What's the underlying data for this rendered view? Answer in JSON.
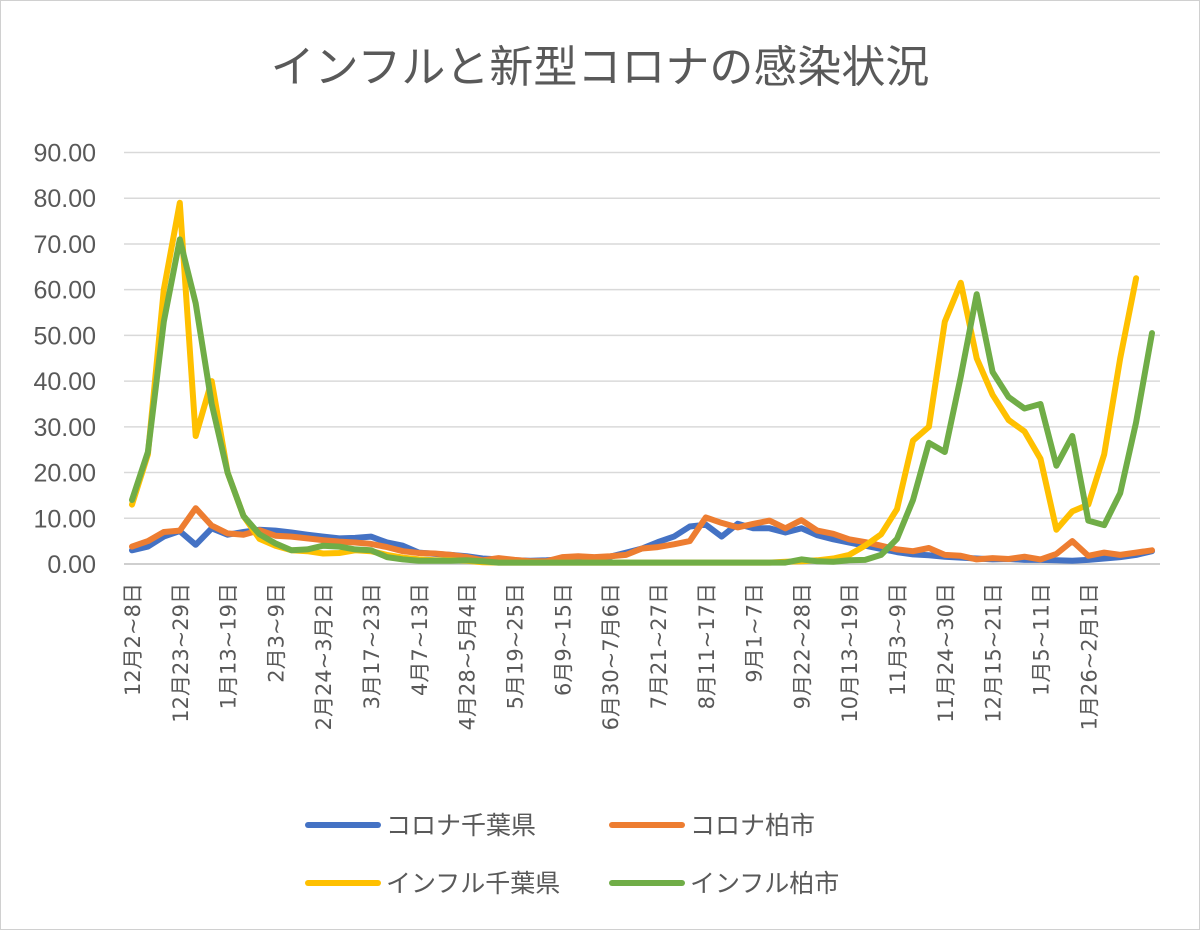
{
  "chart_data": {
    "type": "line",
    "title": "インフルと新型コロナの感染状況",
    "xlabel": "",
    "ylabel": "",
    "ylim": [
      0,
      90
    ],
    "ytick_labels": [
      "0.00",
      "10.00",
      "20.00",
      "30.00",
      "40.00",
      "50.00",
      "60.00",
      "70.00",
      "80.00",
      "90.00"
    ],
    "grid": true,
    "legend_position": "bottom",
    "x_tick_labels": [
      "12月2~8日",
      "12月23~29日",
      "1月13~19日",
      "2月3~9日",
      "2月24~3月2日",
      "3月17~23日",
      "4月7~13日",
      "4月28~5月4日",
      "5月19~25日",
      "6月9~15日",
      "6月30~7月6日",
      "7月21~27日",
      "8月11~17日",
      "9月1~7日",
      "9月22~28日",
      "10月13~19日",
      "11月3~9日",
      "11月24~30日",
      "12月15~21日",
      "1月5~11日",
      "1月26~2月1日"
    ],
    "x_tick_every": 3,
    "series": [
      {
        "name": "コロナ千葉県",
        "color": "#4472C4",
        "values": [
          3.0,
          3.8,
          6.0,
          7.2,
          4.2,
          7.8,
          6.4,
          7.0,
          7.5,
          7.3,
          6.9,
          6.4,
          6.0,
          5.6,
          5.7,
          6.0,
          4.7,
          4.0,
          2.5,
          2.2,
          2.0,
          1.7,
          1.2,
          1.0,
          0.8,
          0.7,
          0.8,
          1.0,
          1.2,
          1.4,
          1.6,
          2.5,
          3.4,
          4.8,
          6.0,
          8.2,
          8.6,
          6.0,
          8.8,
          7.8,
          7.8,
          6.9,
          7.8,
          6.3,
          5.4,
          4.7,
          4.0,
          3.3,
          2.6,
          2.1,
          1.9,
          1.6,
          1.4,
          1.2,
          1.0,
          1.1,
          0.9,
          0.9,
          0.8,
          0.7,
          0.9,
          1.2,
          1.5,
          2.0,
          2.8
        ]
      },
      {
        "name": "コロナ柏市",
        "color": "#ED7D31",
        "values": [
          3.8,
          5.0,
          7.0,
          7.3,
          12.2,
          8.4,
          6.7,
          6.4,
          7.4,
          6.2,
          6.0,
          5.6,
          5.2,
          4.9,
          4.7,
          4.4,
          3.7,
          2.8,
          2.4,
          2.3,
          2.0,
          1.5,
          0.8,
          1.3,
          0.9,
          0.6,
          0.6,
          1.5,
          1.7,
          1.5,
          1.7,
          2.0,
          3.4,
          3.7,
          4.3,
          5.0,
          10.2,
          9.0,
          8.0,
          8.8,
          9.5,
          7.8,
          9.6,
          7.3,
          6.6,
          5.4,
          4.8,
          4.0,
          3.2,
          2.8,
          3.5,
          2.0,
          1.8,
          1.0,
          1.3,
          1.1,
          1.6,
          1.0,
          2.2,
          5.0,
          1.8,
          2.5,
          2.0,
          2.5,
          3.0
        ]
      },
      {
        "name": "インフル千葉県",
        "color": "#FFC000",
        "values": [
          13.0,
          24.0,
          60.0,
          79.0,
          28.0,
          40.0,
          20.0,
          10.5,
          5.5,
          4.0,
          3.0,
          2.8,
          2.3,
          2.4,
          3.0,
          2.8,
          2.0,
          1.4,
          1.0,
          0.8,
          0.8,
          0.7,
          0.4,
          0.3,
          0.3,
          0.3,
          0.3,
          0.3,
          0.3,
          0.3,
          0.3,
          0.3,
          0.3,
          0.3,
          0.3,
          0.3,
          0.3,
          0.3,
          0.3,
          0.3,
          0.3,
          0.5,
          0.6,
          0.8,
          1.2,
          2.0,
          4.0,
          6.5,
          12.0,
          27.0,
          30.0,
          53.0,
          61.5,
          45.0,
          37.0,
          31.5,
          29.0,
          23.0,
          7.5,
          11.5,
          13.0,
          24.0,
          45.0,
          62.5
        ]
      },
      {
        "name": "インフル柏市",
        "color": "#70AD47",
        "values": [
          14.0,
          24.5,
          53.0,
          71.0,
          57.0,
          35.0,
          20.0,
          10.5,
          6.5,
          4.5,
          3.0,
          3.2,
          4.0,
          3.8,
          3.2,
          3.0,
          1.5,
          1.0,
          0.7,
          0.7,
          0.7,
          0.8,
          0.6,
          0.3,
          0.3,
          0.3,
          0.3,
          0.3,
          0.3,
          0.3,
          0.3,
          0.3,
          0.3,
          0.3,
          0.3,
          0.3,
          0.3,
          0.3,
          0.3,
          0.3,
          0.3,
          0.3,
          1.0,
          0.6,
          0.5,
          0.8,
          0.9,
          2.0,
          5.5,
          14.0,
          26.5,
          24.5,
          41.0,
          59.0,
          42.0,
          36.5,
          34.0,
          35.0,
          21.5,
          28.0,
          9.5,
          8.5,
          15.5,
          31.0,
          50.5
        ]
      }
    ]
  }
}
